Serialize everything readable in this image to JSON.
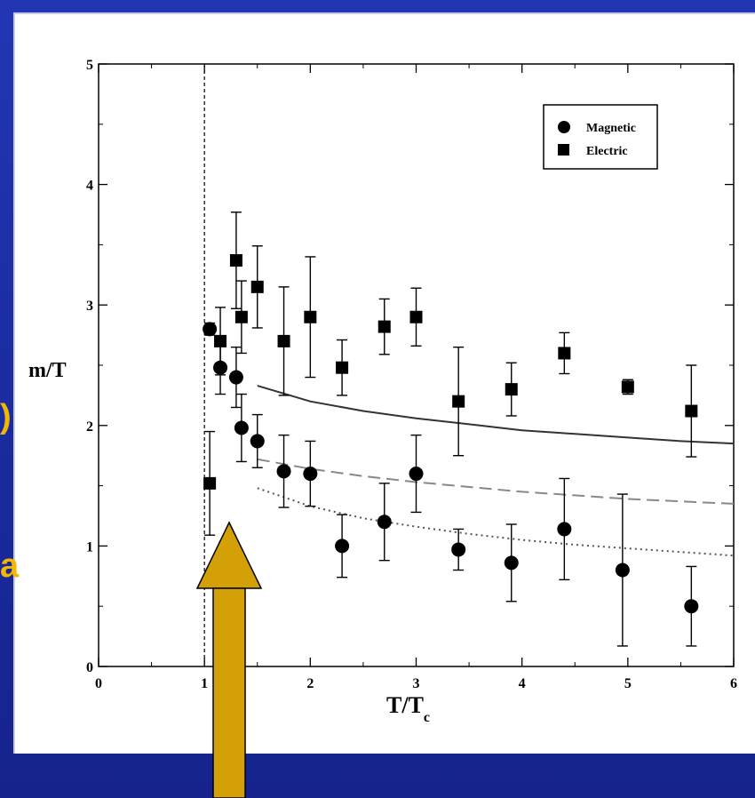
{
  "slide": {
    "background_color": "#1d2fa6",
    "accent_color": "#f2b705",
    "arrow_color": "#d4a007",
    "left_fragments": [
      ")",
      "a"
    ]
  },
  "chart_data": {
    "type": "scatter",
    "title": "",
    "xlabel": "T/T",
    "xlabel_subscript": "c",
    "ylabel": "m/T",
    "xlim": [
      0,
      6
    ],
    "ylim": [
      0,
      5
    ],
    "xticks": [
      0,
      1,
      2,
      3,
      4,
      5,
      6
    ],
    "yticks": [
      0,
      1,
      2,
      3,
      4,
      5
    ],
    "grid": false,
    "legend_position": "top-right",
    "vertical_reference_line": {
      "x": 1.0,
      "style": "dashed"
    },
    "series": [
      {
        "name": "Magnetic",
        "marker": "circle",
        "points": [
          {
            "x": 1.05,
            "y": 2.8,
            "err": 0.05
          },
          {
            "x": 1.15,
            "y": 2.48,
            "err": 0.22
          },
          {
            "x": 1.3,
            "y": 2.4,
            "err": 0.25
          },
          {
            "x": 1.35,
            "y": 1.98,
            "err": 0.28
          },
          {
            "x": 1.5,
            "y": 1.87,
            "err": 0.22
          },
          {
            "x": 1.75,
            "y": 1.62,
            "err": 0.3
          },
          {
            "x": 2.0,
            "y": 1.6,
            "err": 0.27
          },
          {
            "x": 2.3,
            "y": 1.0,
            "err": 0.26
          },
          {
            "x": 2.7,
            "y": 1.2,
            "err": 0.32
          },
          {
            "x": 3.0,
            "y": 1.6,
            "err": 0.32
          },
          {
            "x": 3.4,
            "y": 0.97,
            "err": 0.17
          },
          {
            "x": 3.9,
            "y": 0.86,
            "err": 0.32
          },
          {
            "x": 4.4,
            "y": 1.14,
            "err": 0.42
          },
          {
            "x": 4.95,
            "y": 0.8,
            "err": 0.63
          },
          {
            "x": 5.6,
            "y": 0.5,
            "err": 0.33
          }
        ]
      },
      {
        "name": "Electric",
        "marker": "square",
        "points": [
          {
            "x": 1.05,
            "y": 1.52,
            "err": 0.43
          },
          {
            "x": 1.15,
            "y": 2.7,
            "err": 0.28
          },
          {
            "x": 1.3,
            "y": 3.37,
            "err": 0.4
          },
          {
            "x": 1.35,
            "y": 2.9,
            "err": 0.3
          },
          {
            "x": 1.5,
            "y": 3.15,
            "err": 0.34
          },
          {
            "x": 1.75,
            "y": 2.7,
            "err": 0.45
          },
          {
            "x": 2.0,
            "y": 2.9,
            "err": 0.5
          },
          {
            "x": 2.3,
            "y": 2.48,
            "err": 0.23
          },
          {
            "x": 2.7,
            "y": 2.82,
            "err": 0.23
          },
          {
            "x": 3.0,
            "y": 2.9,
            "err": 0.24
          },
          {
            "x": 3.4,
            "y": 2.2,
            "err": 0.45
          },
          {
            "x": 3.9,
            "y": 2.3,
            "err": 0.22
          },
          {
            "x": 4.4,
            "y": 2.6,
            "err": 0.17
          },
          {
            "x": 5.0,
            "y": 2.32,
            "err": 0.06
          },
          {
            "x": 5.6,
            "y": 2.12,
            "err": 0.38
          }
        ]
      }
    ],
    "curves": [
      {
        "style": "solid",
        "points": [
          [
            1.5,
            2.33
          ],
          [
            2,
            2.2
          ],
          [
            2.5,
            2.12
          ],
          [
            3,
            2.06
          ],
          [
            3.5,
            2.01
          ],
          [
            4,
            1.96
          ],
          [
            4.5,
            1.93
          ],
          [
            5,
            1.9
          ],
          [
            5.5,
            1.87
          ],
          [
            6,
            1.85
          ]
        ]
      },
      {
        "style": "dashed",
        "points": [
          [
            1.5,
            1.72
          ],
          [
            2,
            1.64
          ],
          [
            2.5,
            1.58
          ],
          [
            3,
            1.53
          ],
          [
            3.5,
            1.49
          ],
          [
            4,
            1.45
          ],
          [
            4.5,
            1.42
          ],
          [
            5,
            1.39
          ],
          [
            5.5,
            1.37
          ],
          [
            6,
            1.35
          ]
        ]
      },
      {
        "style": "dotted",
        "points": [
          [
            1.5,
            1.48
          ],
          [
            2,
            1.33
          ],
          [
            2.5,
            1.23
          ],
          [
            3,
            1.16
          ],
          [
            3.5,
            1.1
          ],
          [
            4,
            1.05
          ],
          [
            4.5,
            1.01
          ],
          [
            5,
            0.98
          ],
          [
            5.5,
            0.95
          ],
          [
            6,
            0.92
          ]
        ]
      }
    ]
  }
}
